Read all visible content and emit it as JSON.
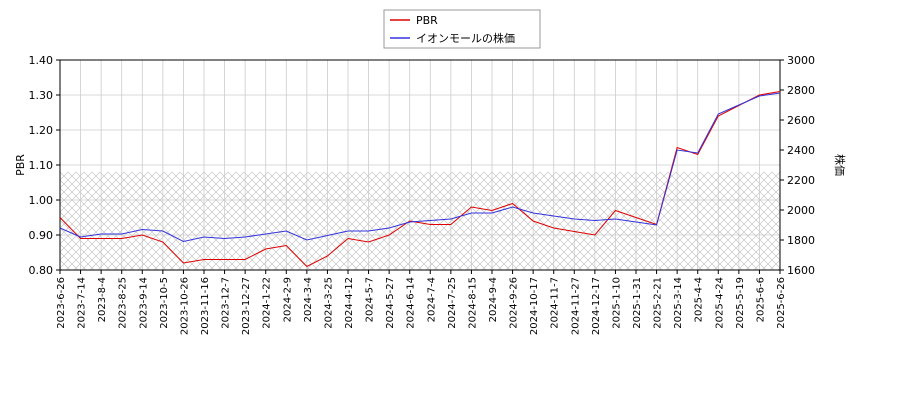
{
  "chart_data": {
    "type": "line",
    "x": [
      "2023-6-26",
      "2023-7-14",
      "2023-8-4",
      "2023-8-25",
      "2023-9-14",
      "2023-10-5",
      "2023-10-26",
      "2023-11-16",
      "2023-12-7",
      "2023-12-27",
      "2024-1-22",
      "2024-2-9",
      "2024-3-4",
      "2024-3-25",
      "2024-4-12",
      "2024-5-7",
      "2024-5-27",
      "2024-6-14",
      "2024-7-4",
      "2024-7-25",
      "2024-8-15",
      "2024-9-4",
      "2024-9-26",
      "2024-10-17",
      "2024-11-7",
      "2024-11-27",
      "2024-12-17",
      "2025-1-10",
      "2025-1-31",
      "2025-2-21",
      "2025-3-14",
      "2025-4-4",
      "2025-4-24",
      "2025-5-19",
      "2025-6-6",
      "2025-6-26"
    ],
    "series": [
      {
        "name": "PBR",
        "color": "#dd0000",
        "values": [
          0.95,
          0.89,
          0.89,
          0.89,
          0.9,
          0.88,
          0.82,
          0.83,
          0.83,
          0.83,
          0.86,
          0.87,
          0.81,
          0.84,
          0.89,
          0.88,
          0.9,
          0.94,
          0.93,
          0.93,
          0.98,
          0.97,
          0.99,
          0.94,
          0.92,
          0.91,
          0.9,
          0.97,
          0.95,
          0.93,
          1.15,
          1.13,
          1.24,
          1.27,
          1.3,
          1.31
        ]
      },
      {
        "name": "イオンモールの株価",
        "color": "#3333dd",
        "axis": "y2",
        "values": [
          1880,
          1820,
          1840,
          1840,
          1870,
          1860,
          1790,
          1820,
          1810,
          1820,
          1840,
          1860,
          1800,
          1830,
          1860,
          1860,
          1880,
          1920,
          1930,
          1940,
          1980,
          1980,
          2020,
          1980,
          1960,
          1940,
          1930,
          1940,
          1920,
          1900,
          2400,
          2380,
          2640,
          2700,
          2760,
          2780
        ]
      }
    ],
    "ylabel": "PBR",
    "y2label": "株価",
    "ylim": [
      0.8,
      1.4
    ],
    "yticks": [
      {
        "value": 0.8,
        "label": "0.80"
      },
      {
        "value": 0.9,
        "label": "0.90"
      },
      {
        "value": 1.0,
        "label": "1.00"
      },
      {
        "value": 1.1,
        "label": "1.10"
      },
      {
        "value": 1.2,
        "label": "1.20"
      },
      {
        "value": 1.3,
        "label": "1.30"
      },
      {
        "value": 1.4,
        "label": "1.40"
      }
    ],
    "y2lim": [
      1600,
      3000
    ],
    "y2ticks": [
      1600,
      1800,
      2000,
      2200,
      2400,
      2600,
      2800,
      3000
    ],
    "hatch_range": [
      0.8,
      1.08
    ],
    "grid": true,
    "legend": "top"
  }
}
